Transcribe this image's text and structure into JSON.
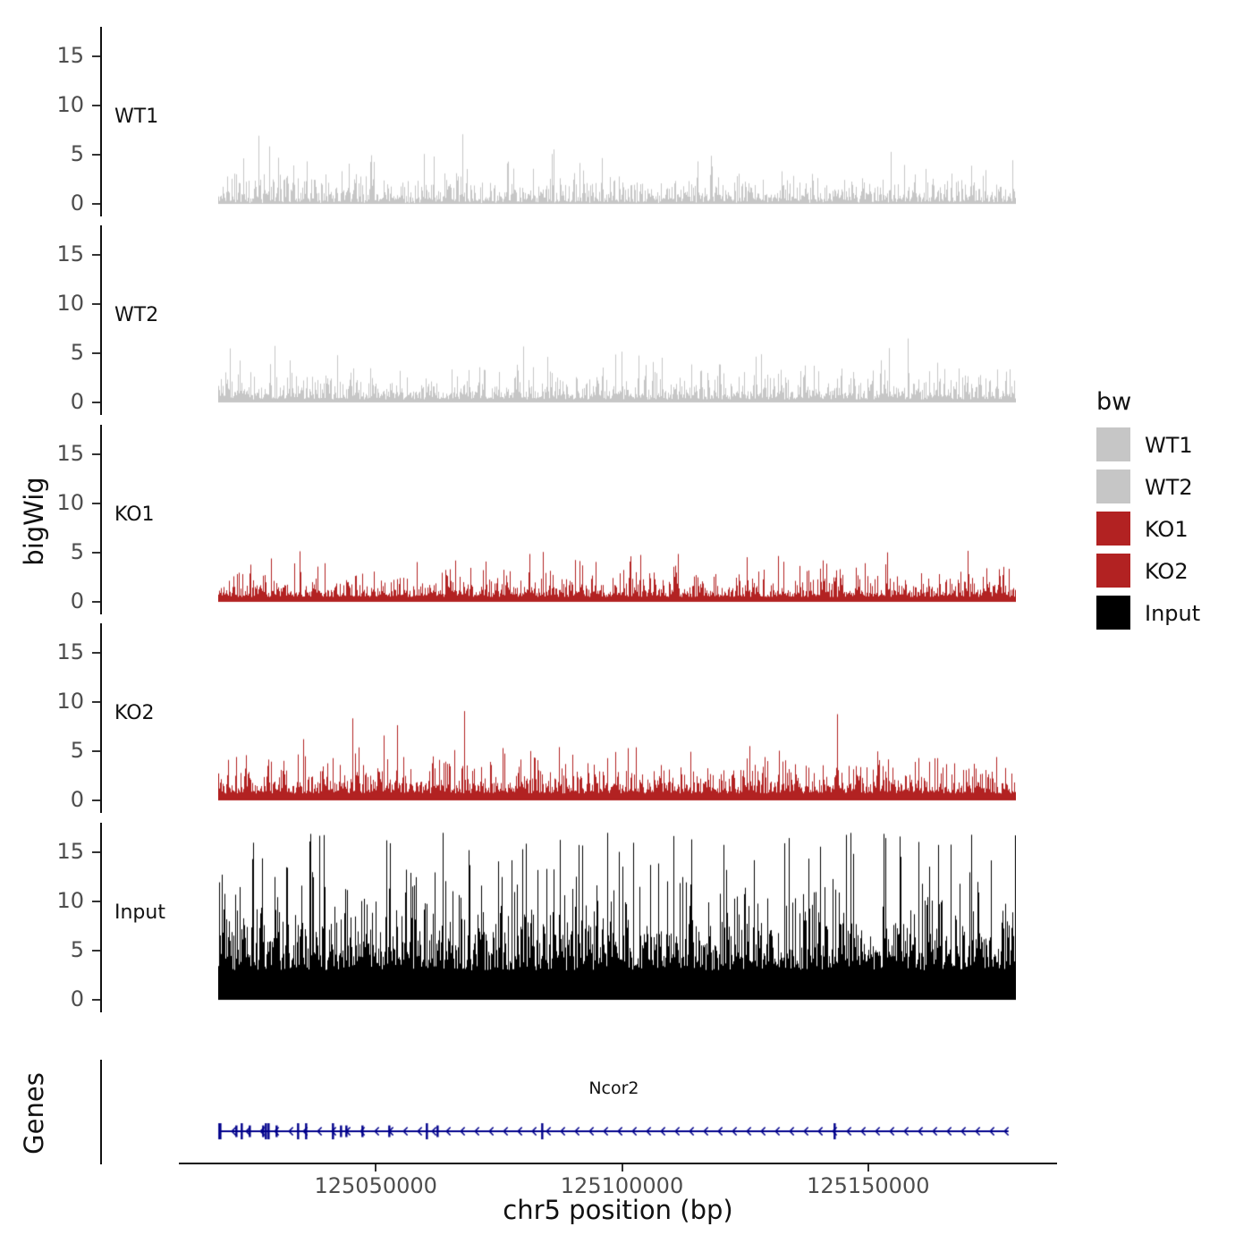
{
  "chart_data": {
    "type": "area",
    "subtype": "genome-coverage-tracks",
    "title": "",
    "xlabel": "chr5 position (bp)",
    "ylabel": "bigWig",
    "x_axis": {
      "range_bp": [
        125010000,
        125188000
      ],
      "ticks": [
        125050000,
        125100000,
        125150000
      ],
      "tick_labels": [
        "125050000",
        "125100000",
        "125150000"
      ]
    },
    "y_ticks": [
      0,
      5,
      10,
      15
    ],
    "y_max": 17.5,
    "signal_range_bp": [
      125018000,
      125180000
    ],
    "tracks": [
      {
        "name": "WT1",
        "color": "#c6c6c6",
        "seed": 11,
        "baseline": 0.15,
        "scale": 0.95,
        "max_value": 8.5
      },
      {
        "name": "WT2",
        "color": "#c6c6c6",
        "seed": 22,
        "baseline": 0.3,
        "scale": 0.95,
        "max_value": 7.0
      },
      {
        "name": "KO1",
        "color": "#b22222",
        "seed": 33,
        "baseline": 0.5,
        "scale": 0.8,
        "max_value": 6.0
      },
      {
        "name": "KO2",
        "color": "#b22222",
        "seed": 44,
        "baseline": 0.7,
        "scale": 1.1,
        "max_value": 9.5
      },
      {
        "name": "Input",
        "color": "#000000",
        "seed": 55,
        "baseline": 3.0,
        "scale": 3.2,
        "max_value": 17.0
      }
    ],
    "genes_panel": {
      "label": "Genes",
      "gene": {
        "name": "Ncor2",
        "color": "#00008b",
        "strand": "-",
        "start_bp": 125018200,
        "end_bp": 125178500,
        "exon_seed": 7
      }
    }
  },
  "legend": {
    "title": "bw",
    "entries": [
      {
        "label": "WT1",
        "color": "#c6c6c6"
      },
      {
        "label": "WT2",
        "color": "#c6c6c6"
      },
      {
        "label": "KO1",
        "color": "#b22222"
      },
      {
        "label": "KO2",
        "color": "#b22222"
      },
      {
        "label": "Input",
        "color": "#000000"
      }
    ]
  }
}
